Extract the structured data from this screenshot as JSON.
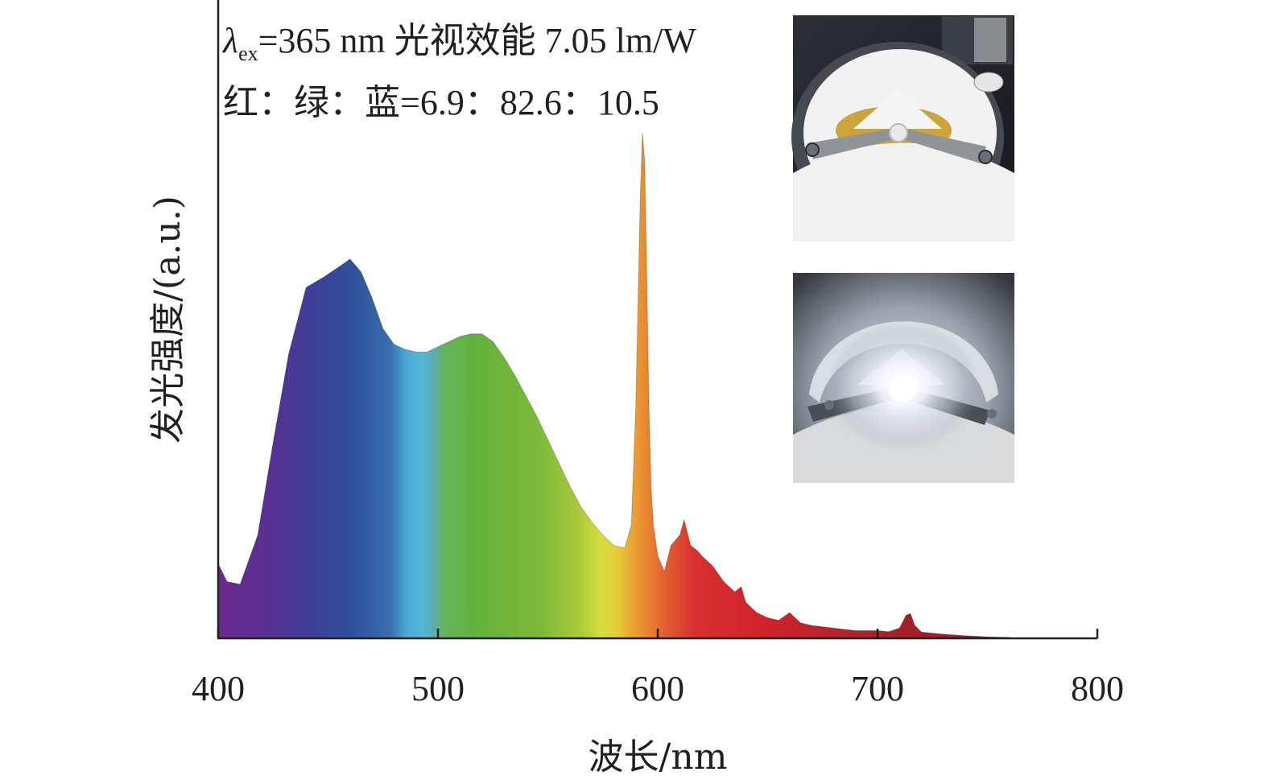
{
  "chart_data": {
    "type": "area",
    "xlabel": "波长/nm",
    "ylabel": "发光强度/(a.u.)",
    "xlim": [
      400,
      800
    ],
    "ylim": [
      0,
      1.0
    ],
    "x_ticks": [
      400,
      500,
      600,
      700,
      800
    ],
    "y_ticks_shown": false,
    "fill": "visible-spectrum rainbow gradient by wavelength",
    "series": [
      {
        "x": [
          400,
          404,
          410,
          418,
          425,
          432,
          440,
          448,
          455,
          460,
          465,
          470,
          475,
          480,
          485,
          490,
          495,
          500,
          505,
          510,
          515,
          520,
          525,
          530,
          535,
          540,
          545,
          550,
          555,
          560,
          565,
          570,
          575,
          580,
          585,
          588,
          590,
          592,
          593,
          594,
          595,
          596,
          597,
          598,
          600,
          603,
          606,
          610,
          612,
          615,
          618,
          620,
          625,
          630,
          635,
          638,
          640,
          645,
          650,
          655,
          660,
          665,
          670,
          680,
          690,
          700,
          705,
          710,
          713,
          715,
          717,
          720,
          730,
          740,
          750,
          760
        ],
        "y": [
          0.145,
          0.11,
          0.105,
          0.2,
          0.38,
          0.55,
          0.68,
          0.7,
          0.72,
          0.735,
          0.71,
          0.66,
          0.6,
          0.57,
          0.56,
          0.555,
          0.555,
          0.565,
          0.575,
          0.585,
          0.59,
          0.59,
          0.575,
          0.545,
          0.51,
          0.47,
          0.43,
          0.385,
          0.34,
          0.295,
          0.255,
          0.225,
          0.2,
          0.18,
          0.175,
          0.22,
          0.45,
          0.85,
          0.98,
          0.93,
          0.7,
          0.45,
          0.29,
          0.22,
          0.16,
          0.13,
          0.18,
          0.2,
          0.23,
          0.18,
          0.17,
          0.16,
          0.14,
          0.11,
          0.09,
          0.1,
          0.07,
          0.05,
          0.04,
          0.035,
          0.05,
          0.03,
          0.025,
          0.02,
          0.015,
          0.015,
          0.013,
          0.02,
          0.045,
          0.048,
          0.025,
          0.012,
          0.008,
          0.005,
          0.003,
          0.002
        ]
      }
    ]
  },
  "annotations": {
    "excitation_symbol": "λ",
    "excitation_subscript": "ex",
    "excitation_rest": "=365 nm 光视效能 7.05 lm/W",
    "ratio_text": "红：绿：蓝=6.9：82.6：10.5"
  },
  "insets": [
    {
      "state": "off",
      "description_icon": "led-device-photo-unlit"
    },
    {
      "state": "on",
      "description_icon": "led-device-photo-lit"
    }
  ],
  "colors": {
    "axis": "#231f20",
    "violet": "#5a2a8a",
    "blue": "#2f4d97",
    "cyan": "#4fb3d9",
    "green": "#5db53b",
    "yellow": "#d7dd3a",
    "orange": "#f0a030",
    "red": "#d7272e",
    "darkred": "#9a1f24"
  }
}
